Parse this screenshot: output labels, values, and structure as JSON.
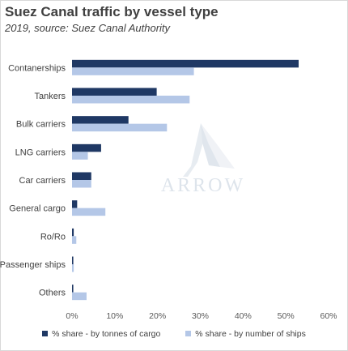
{
  "chart_data": {
    "type": "bar",
    "orientation": "horizontal",
    "title": "Suez Canal traffic by vessel type",
    "subtitle": "2019, source: Suez Canal Authority",
    "categories": [
      "Contanerships",
      "Tankers",
      "Bulk carriers",
      "LNG carriers",
      "Car carriers",
      "General cargo",
      "Ro/Ro",
      "Passenger ships",
      "Others"
    ],
    "series": [
      {
        "name": "% share - by tonnes of cargo",
        "color": "#1f3864",
        "values": [
          0.53,
          0.198,
          0.132,
          0.068,
          0.045,
          0.012,
          0.004,
          0.003,
          0.003
        ]
      },
      {
        "name": "% share - by number of ships",
        "color": "#b4c7e7",
        "values": [
          0.285,
          0.275,
          0.222,
          0.037,
          0.045,
          0.078,
          0.01,
          0.004,
          0.034
        ]
      }
    ],
    "xlim": [
      0,
      0.6
    ],
    "xticks": [
      "0%",
      "10%",
      "20%",
      "30%",
      "40%",
      "50%",
      "60%"
    ],
    "legend_position": "bottom",
    "grid": false,
    "watermark": "ARROW"
  }
}
